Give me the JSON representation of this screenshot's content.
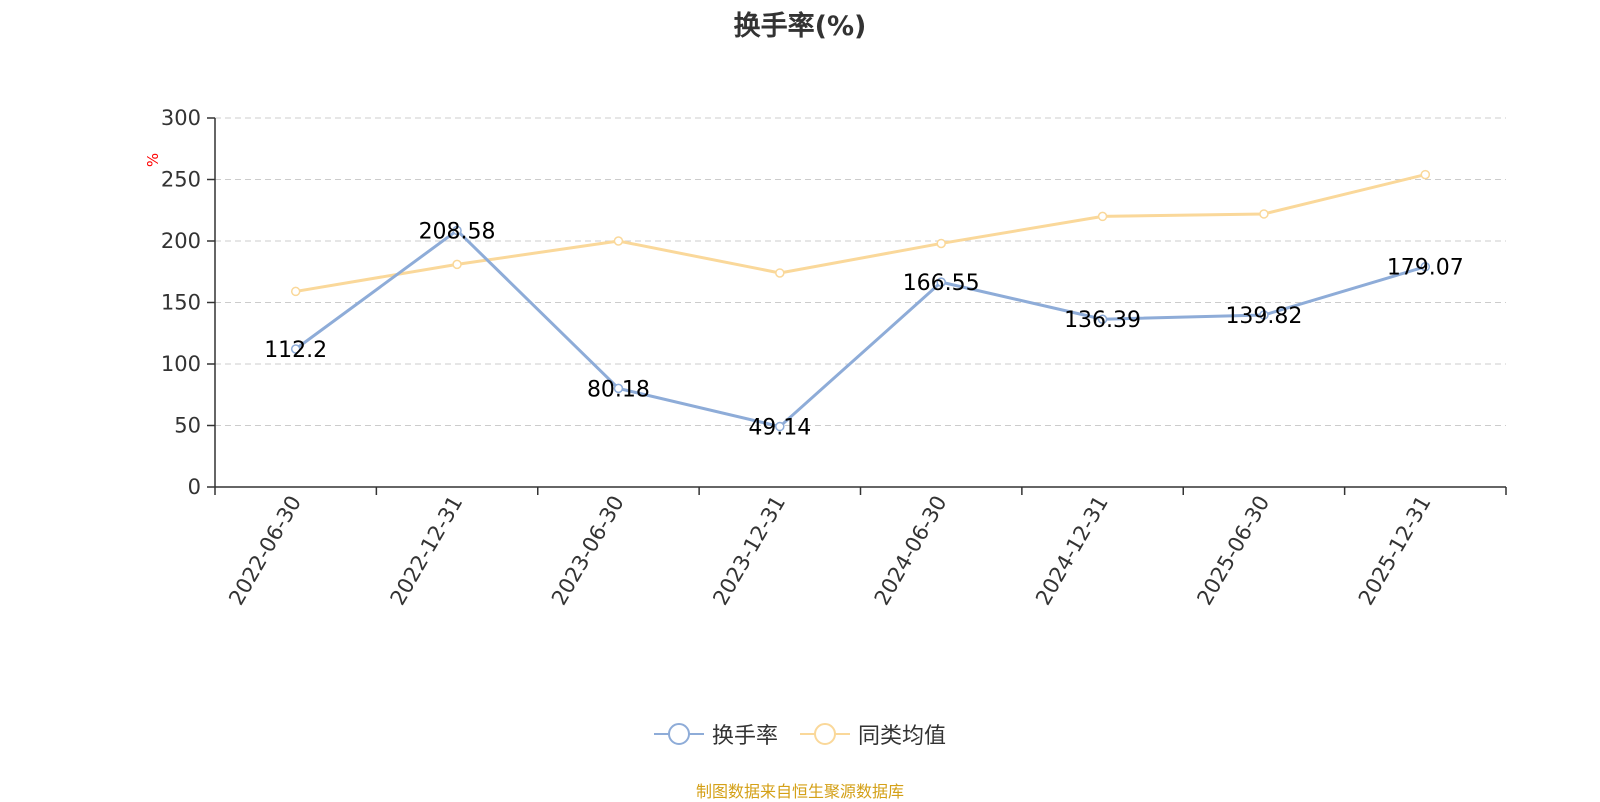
{
  "chart_data": {
    "type": "line",
    "title": "换手率(%)",
    "ylabel": "%",
    "xlabel": "",
    "categories": [
      "2022-06-30",
      "2022-12-31",
      "2023-06-30",
      "2023-12-31",
      "2024-06-30",
      "2024-12-31",
      "2025-06-30",
      "2025-12-31"
    ],
    "ylim": [
      0,
      300
    ],
    "yticks": [
      0,
      50,
      100,
      150,
      200,
      250,
      300
    ],
    "grid": true,
    "legend_position": "bottom-center",
    "series": [
      {
        "name": "换手率",
        "color": "#8eacd8",
        "values": [
          112.2,
          208.58,
          80.18,
          49.14,
          166.55,
          136.39,
          139.82,
          179.07
        ],
        "data_labels": [
          "112.2",
          "208.58",
          "80.18",
          "49.14",
          "166.55",
          "136.39",
          "139.82",
          "179.07"
        ]
      },
      {
        "name": "同类均值",
        "color": "#fad89a",
        "values": [
          159,
          181,
          200,
          174,
          198,
          220,
          222,
          254
        ]
      }
    ]
  },
  "source_note": "制图数据来自恒生聚源数据库",
  "colors": {
    "axis": "#333333",
    "grid": "#cccccc",
    "ylabel": "#ff0000",
    "source": "#d4a017"
  }
}
